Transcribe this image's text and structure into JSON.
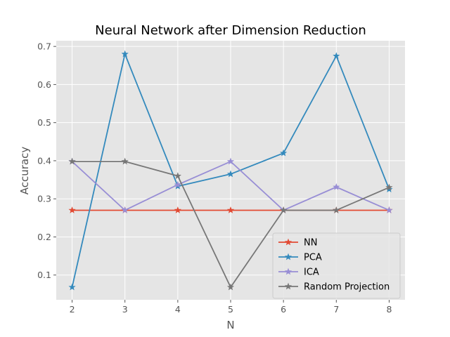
{
  "chart_data": {
    "type": "line",
    "title": "Neural Network after Dimension Reduction",
    "xlabel": "N",
    "ylabel": "Accuracy",
    "x": [
      2,
      3,
      4,
      5,
      6,
      7,
      8
    ],
    "xlim": [
      1.7,
      8.3
    ],
    "ylim": [
      0.035,
      0.715
    ],
    "xticks": [
      2,
      3,
      4,
      5,
      6,
      7,
      8
    ],
    "yticks": [
      0.1,
      0.2,
      0.3,
      0.4,
      0.5,
      0.6,
      0.7
    ],
    "ytick_labels": [
      "0.1",
      "0.2",
      "0.3",
      "0.4",
      "0.5",
      "0.6",
      "0.7"
    ],
    "grid": true,
    "legend_position": "lower-right",
    "marker": "star",
    "series": [
      {
        "name": "NN",
        "color": "#E24A33",
        "values": [
          0.27,
          0.27,
          0.27,
          0.27,
          0.27,
          0.27,
          0.27
        ]
      },
      {
        "name": "PCA",
        "color": "#348ABD",
        "values": [
          0.068,
          0.68,
          0.333,
          0.365,
          0.42,
          0.675,
          0.325
        ]
      },
      {
        "name": "ICA",
        "color": "#988ED5",
        "values": [
          0.398,
          0.27,
          0.337,
          0.398,
          0.27,
          0.331,
          0.27
        ]
      },
      {
        "name": "Random Projection",
        "color": "#777777",
        "values": [
          0.398,
          0.398,
          0.36,
          0.068,
          0.27,
          0.27,
          0.33
        ]
      }
    ]
  }
}
